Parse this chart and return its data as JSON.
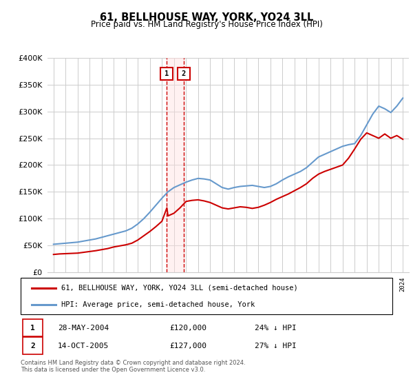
{
  "title": "61, BELLHOUSE WAY, YORK, YO24 3LL",
  "subtitle": "Price paid vs. HM Land Registry's House Price Index (HPI)",
  "footer": "Contains HM Land Registry data © Crown copyright and database right 2024.\nThis data is licensed under the Open Government Licence v3.0.",
  "legend_line1": "61, BELLHOUSE WAY, YORK, YO24 3LL (semi-detached house)",
  "legend_line2": "HPI: Average price, semi-detached house, York",
  "sale1_label": "1",
  "sale1_date": "28-MAY-2004",
  "sale1_price": "£120,000",
  "sale1_hpi": "24% ↓ HPI",
  "sale1_year": 2004.41,
  "sale1_value": 120000,
  "sale2_label": "2",
  "sale2_date": "14-OCT-2005",
  "sale2_price": "£127,000",
  "sale2_hpi": "27% ↓ HPI",
  "sale2_year": 2005.79,
  "sale2_value": 127000,
  "red_color": "#cc0000",
  "blue_color": "#6699cc",
  "ylim": [
    0,
    400000
  ],
  "yticks": [
    0,
    50000,
    100000,
    150000,
    200000,
    250000,
    300000,
    350000,
    400000
  ],
  "hpi_years": [
    1995.0,
    1995.5,
    1996.0,
    1996.5,
    1997.0,
    1997.5,
    1998.0,
    1998.5,
    1999.0,
    1999.5,
    2000.0,
    2000.5,
    2001.0,
    2001.5,
    2002.0,
    2002.5,
    2003.0,
    2003.5,
    2004.0,
    2004.5,
    2005.0,
    2005.5,
    2006.0,
    2006.5,
    2007.0,
    2007.5,
    2008.0,
    2008.5,
    2009.0,
    2009.5,
    2010.0,
    2010.5,
    2011.0,
    2011.5,
    2012.0,
    2012.5,
    2013.0,
    2013.5,
    2014.0,
    2014.5,
    2015.0,
    2015.5,
    2016.0,
    2016.5,
    2017.0,
    2017.5,
    2018.0,
    2018.5,
    2019.0,
    2019.5,
    2020.0,
    2020.5,
    2021.0,
    2021.5,
    2022.0,
    2022.5,
    2023.0,
    2023.5,
    2024.0
  ],
  "hpi_values": [
    52000,
    53000,
    54000,
    55000,
    56000,
    58000,
    60000,
    62000,
    65000,
    68000,
    71000,
    74000,
    77000,
    82000,
    90000,
    100000,
    112000,
    125000,
    138000,
    150000,
    158000,
    163000,
    168000,
    172000,
    175000,
    174000,
    172000,
    165000,
    158000,
    155000,
    158000,
    160000,
    161000,
    162000,
    160000,
    158000,
    160000,
    165000,
    172000,
    178000,
    183000,
    188000,
    195000,
    205000,
    215000,
    220000,
    225000,
    230000,
    235000,
    238000,
    240000,
    255000,
    275000,
    295000,
    310000,
    305000,
    298000,
    310000,
    325000
  ],
  "red_years": [
    1995.0,
    1995.5,
    1996.0,
    1996.5,
    1997.0,
    1997.5,
    1998.0,
    1998.5,
    1999.0,
    1999.5,
    2000.0,
    2000.5,
    2001.0,
    2001.5,
    2002.0,
    2002.5,
    2003.0,
    2003.5,
    2004.0,
    2004.41,
    2004.5,
    2005.0,
    2005.5,
    2005.79,
    2006.0,
    2006.5,
    2007.0,
    2007.5,
    2008.0,
    2008.5,
    2009.0,
    2009.5,
    2010.0,
    2010.5,
    2011.0,
    2011.5,
    2012.0,
    2012.5,
    2013.0,
    2013.5,
    2014.0,
    2014.5,
    2015.0,
    2015.5,
    2016.0,
    2016.5,
    2017.0,
    2017.5,
    2018.0,
    2018.5,
    2019.0,
    2019.5,
    2020.0,
    2020.5,
    2021.0,
    2021.5,
    2022.0,
    2022.5,
    2023.0,
    2023.5,
    2024.0
  ],
  "red_values": [
    33000,
    34000,
    34500,
    35000,
    35500,
    37000,
    38500,
    40000,
    42000,
    44000,
    47000,
    49000,
    51000,
    54000,
    60000,
    68000,
    76000,
    85000,
    95000,
    120000,
    105000,
    110000,
    120000,
    127000,
    132000,
    134000,
    135000,
    133000,
    130000,
    125000,
    120000,
    118000,
    120000,
    122000,
    121000,
    119000,
    121000,
    125000,
    130000,
    136000,
    141000,
    146000,
    152000,
    158000,
    165000,
    175000,
    183000,
    188000,
    192000,
    196000,
    200000,
    213000,
    230000,
    248000,
    260000,
    255000,
    250000,
    258000,
    250000,
    255000,
    248000
  ]
}
